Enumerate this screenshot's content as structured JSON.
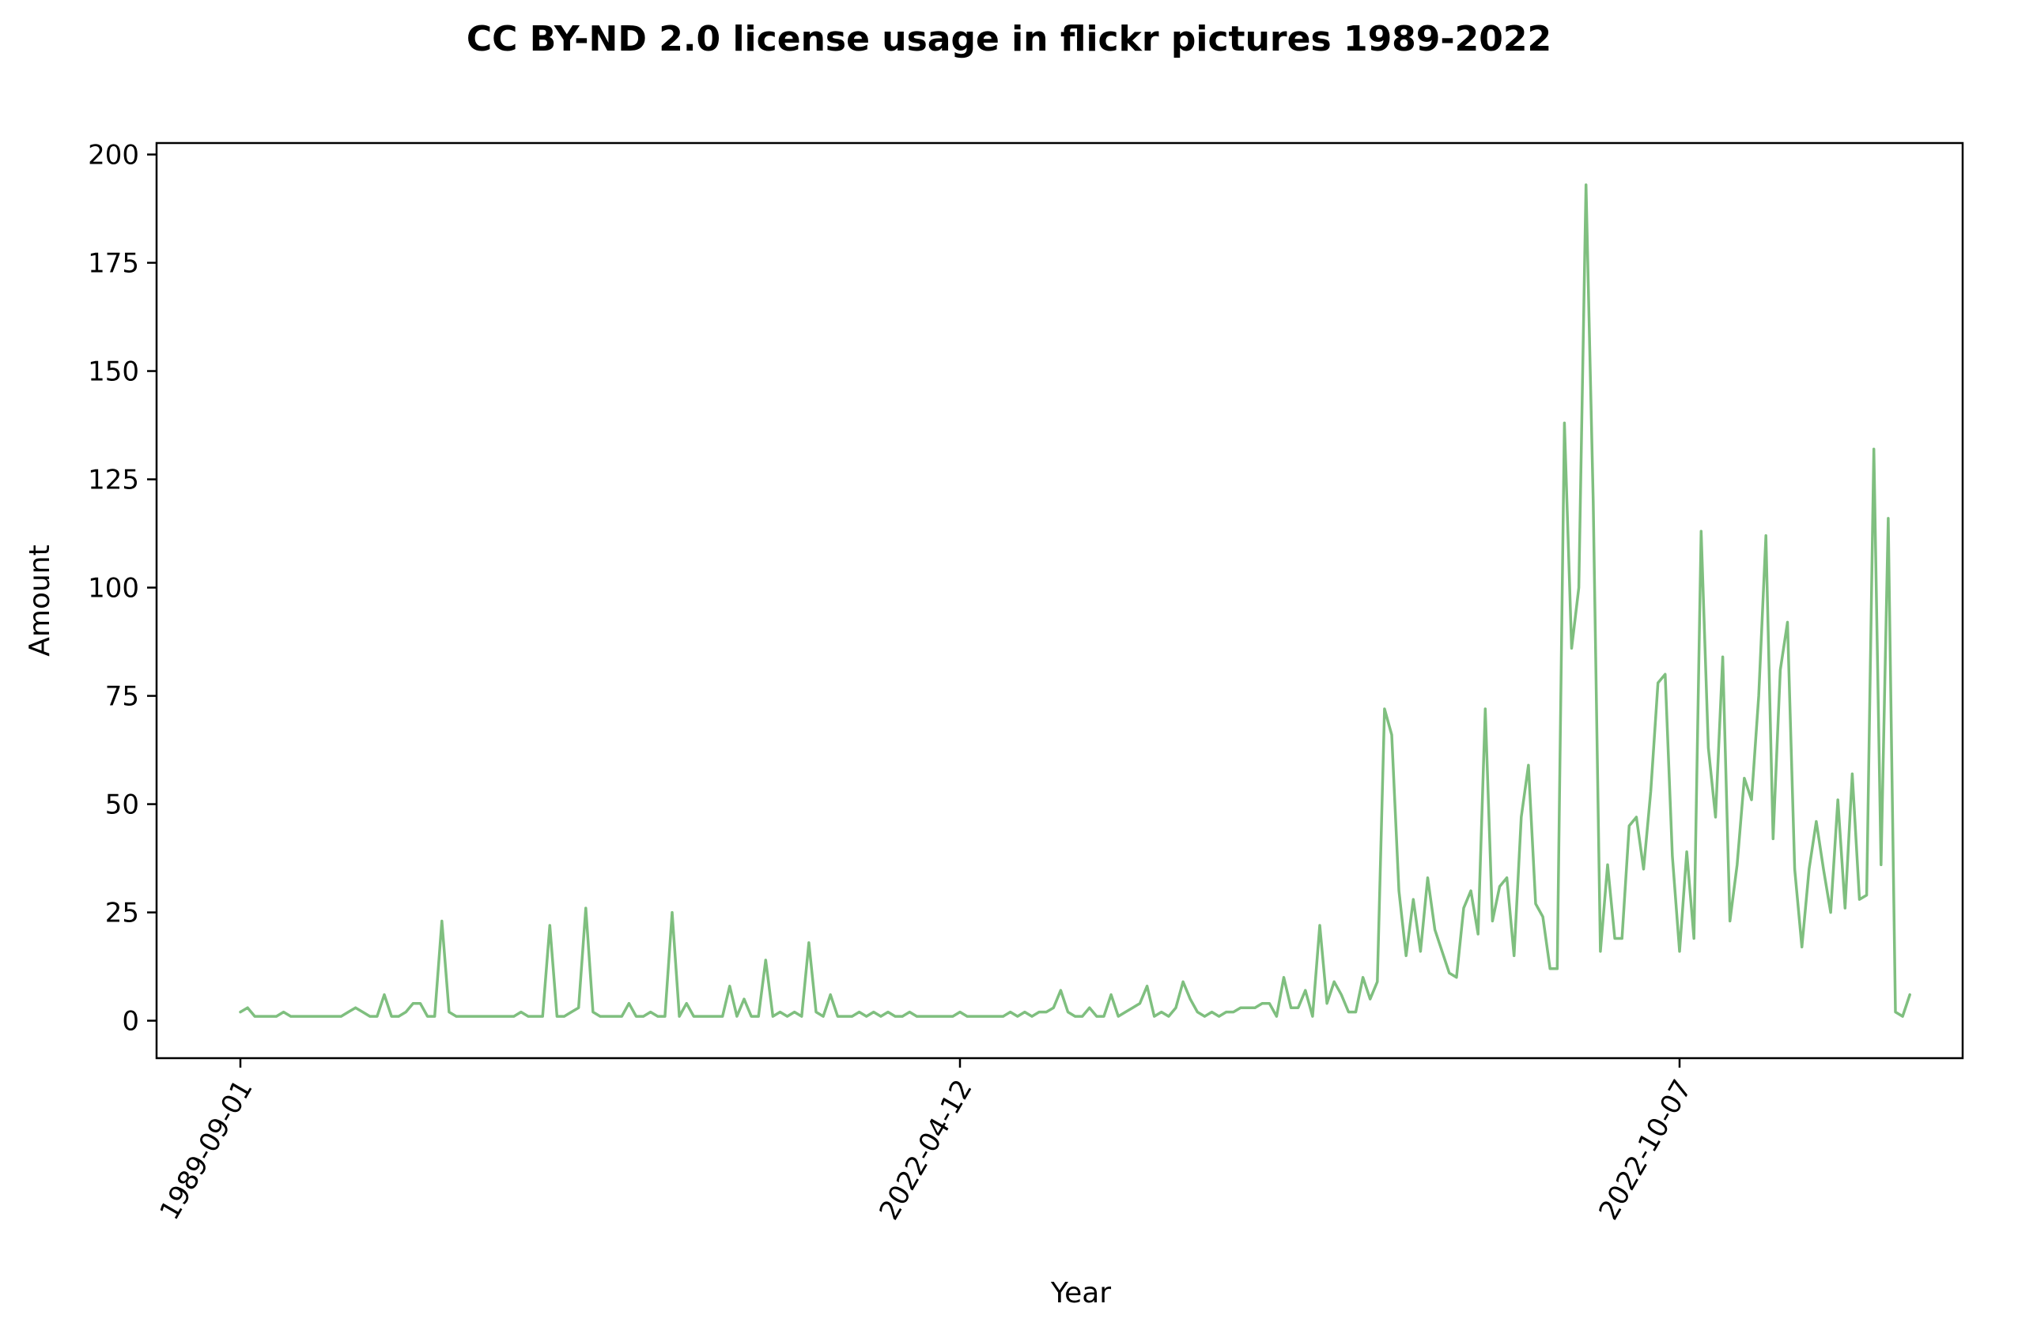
{
  "chart_data": {
    "type": "line",
    "title": "CC BY-ND 2.0 license usage in flickr pictures 1989-2022",
    "xlabel": "Year",
    "ylabel": "Amount",
    "ylim": [
      -8.65,
      202.65
    ],
    "yticks": [
      0,
      25,
      50,
      75,
      100,
      125,
      150,
      175,
      200
    ],
    "xticks": [
      {
        "label": "1989-09-01",
        "index": 0
      },
      {
        "label": "2022-04-12",
        "index": 100
      },
      {
        "label": "2022-10-07",
        "index": 200
      }
    ],
    "grid": false,
    "legend": "none",
    "series": [
      {
        "color": "#7fbf7f",
        "values": [
          2,
          3,
          1,
          1,
          1,
          1,
          2,
          1,
          1,
          1,
          1,
          1,
          1,
          1,
          1,
          2,
          3,
          2,
          1,
          1,
          6,
          1,
          1,
          2,
          4,
          4,
          1,
          1,
          23,
          2,
          1,
          1,
          1,
          1,
          1,
          1,
          1,
          1,
          1,
          2,
          1,
          1,
          1,
          22,
          1,
          1,
          2,
          3,
          26,
          2,
          1,
          1,
          1,
          1,
          4,
          1,
          1,
          2,
          1,
          1,
          25,
          1,
          4,
          1,
          1,
          1,
          1,
          1,
          8,
          1,
          5,
          1,
          1,
          14,
          1,
          2,
          1,
          2,
          1,
          18,
          2,
          1,
          6,
          1,
          1,
          1,
          2,
          1,
          2,
          1,
          2,
          1,
          1,
          2,
          1,
          1,
          1,
          1,
          1,
          1,
          2,
          1,
          1,
          1,
          1,
          1,
          1,
          2,
          1,
          2,
          1,
          2,
          2,
          3,
          7,
          2,
          1,
          1,
          3,
          1,
          1,
          6,
          1,
          2,
          3,
          4,
          8,
          1,
          2,
          1,
          3,
          9,
          5,
          2,
          1,
          2,
          1,
          2,
          2,
          3,
          3,
          3,
          4,
          4,
          1,
          10,
          3,
          3,
          7,
          1,
          22,
          4,
          9,
          6,
          2,
          2,
          10,
          5,
          9,
          72,
          66,
          30,
          15,
          28,
          16,
          33,
          21,
          16,
          11,
          10,
          26,
          30,
          20,
          72,
          23,
          31,
          33,
          15,
          47,
          59,
          27,
          24,
          12,
          12,
          138,
          86,
          100,
          193,
          120,
          16,
          36,
          19,
          19,
          45,
          47,
          35,
          53,
          78,
          80,
          38,
          16,
          39,
          19,
          113,
          63,
          47,
          84,
          23,
          36,
          56,
          51,
          75,
          112,
          42,
          81,
          92,
          35,
          17,
          35,
          46,
          35,
          25,
          51,
          26,
          57,
          28,
          29,
          132,
          36,
          116,
          2,
          1,
          6
        ]
      }
    ]
  }
}
